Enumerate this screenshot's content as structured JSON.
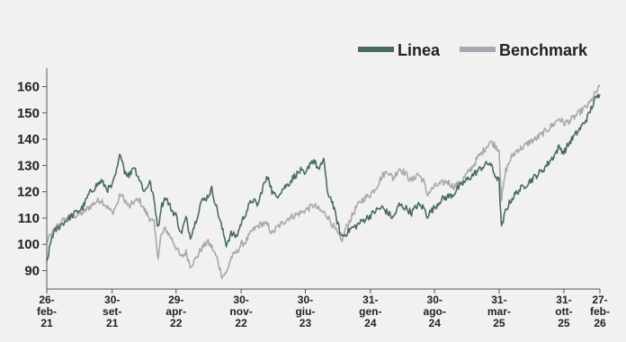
{
  "chart_data": {
    "type": "line",
    "title": "",
    "xlabel": "",
    "ylabel": "",
    "ylim": [
      83,
      167
    ],
    "yticks": [
      90,
      100,
      110,
      120,
      130,
      140,
      150,
      160
    ],
    "grid": false,
    "legend_position": "top-right",
    "x_tick_labels": [
      [
        "26-",
        "feb-",
        "21"
      ],
      [
        "30-",
        "set-",
        "21"
      ],
      [
        "29-",
        "apr-",
        "22"
      ],
      [
        "30-",
        "nov-",
        "22"
      ],
      [
        "30-",
        "giu-",
        "23"
      ],
      [
        "31-",
        "gen-",
        "24"
      ],
      [
        "30-",
        "ago-",
        "24"
      ],
      [
        "31-",
        "mar-",
        "25"
      ],
      [
        "31-",
        "ott-",
        "25"
      ],
      [
        "27-",
        "feb-",
        "26"
      ]
    ],
    "x_tick_dates": [
      "2021-02-26",
      "2021-09-30",
      "2022-04-29",
      "2022-11-30",
      "2023-06-30",
      "2024-01-31",
      "2024-08-30",
      "2025-03-31",
      "2025-10-31",
      "2026-02-27"
    ],
    "series": [
      {
        "name": "Linea",
        "color": "#4a6b62",
        "points": [
          [
            "2021-02-26",
            93
          ],
          [
            "2021-03-15",
            103
          ],
          [
            "2021-04-01",
            106
          ],
          [
            "2021-04-20",
            108
          ],
          [
            "2021-05-10",
            110
          ],
          [
            "2021-06-01",
            112
          ],
          [
            "2021-06-25",
            114
          ],
          [
            "2021-07-15",
            119
          ],
          [
            "2021-08-05",
            122
          ],
          [
            "2021-08-25",
            124
          ],
          [
            "2021-09-15",
            121
          ],
          [
            "2021-09-30",
            122
          ],
          [
            "2021-10-15",
            128
          ],
          [
            "2021-10-28",
            135
          ],
          [
            "2021-11-10",
            128
          ],
          [
            "2021-11-25",
            126
          ],
          [
            "2021-12-10",
            130
          ],
          [
            "2021-12-28",
            125
          ],
          [
            "2022-01-15",
            120
          ],
          [
            "2022-02-01",
            124
          ],
          [
            "2022-02-15",
            117
          ],
          [
            "2022-03-01",
            106
          ],
          [
            "2022-03-10",
            114
          ],
          [
            "2022-03-25",
            118
          ],
          [
            "2022-04-15",
            113
          ],
          [
            "2022-04-29",
            111
          ],
          [
            "2022-05-15",
            104
          ],
          [
            "2022-06-01",
            110
          ],
          [
            "2022-06-15",
            103
          ],
          [
            "2022-07-01",
            108
          ],
          [
            "2022-07-20",
            116
          ],
          [
            "2022-08-10",
            118
          ],
          [
            "2022-08-25",
            121
          ],
          [
            "2022-09-10",
            114
          ],
          [
            "2022-09-28",
            106
          ],
          [
            "2022-10-12",
            100
          ],
          [
            "2022-10-28",
            104
          ],
          [
            "2022-11-15",
            103
          ],
          [
            "2022-11-30",
            108
          ],
          [
            "2022-12-15",
            112
          ],
          [
            "2023-01-05",
            117
          ],
          [
            "2023-01-25",
            115
          ],
          [
            "2023-02-10",
            122
          ],
          [
            "2023-02-28",
            126
          ],
          [
            "2023-03-12",
            120
          ],
          [
            "2023-03-25",
            118
          ],
          [
            "2023-04-15",
            121
          ],
          [
            "2023-05-05",
            123
          ],
          [
            "2023-05-25",
            126
          ],
          [
            "2023-06-15",
            128
          ],
          [
            "2023-06-30",
            126
          ],
          [
            "2023-07-15",
            131
          ],
          [
            "2023-07-28",
            132
          ],
          [
            "2023-08-15",
            128
          ],
          [
            "2023-08-30",
            133
          ],
          [
            "2023-09-10",
            120
          ],
          [
            "2023-09-25",
            117
          ],
          [
            "2023-10-10",
            110
          ],
          [
            "2023-10-27",
            103
          ],
          [
            "2023-11-10",
            104
          ],
          [
            "2023-11-28",
            106
          ],
          [
            "2023-12-15",
            107
          ],
          [
            "2024-01-05",
            109
          ],
          [
            "2024-01-31",
            111
          ],
          [
            "2024-02-20",
            113
          ],
          [
            "2024-03-10",
            114
          ],
          [
            "2024-03-28",
            112
          ],
          [
            "2024-04-15",
            110
          ],
          [
            "2024-05-05",
            115
          ],
          [
            "2024-05-25",
            114
          ],
          [
            "2024-06-15",
            112
          ],
          [
            "2024-07-05",
            115
          ],
          [
            "2024-07-25",
            114
          ],
          [
            "2024-08-05",
            111
          ],
          [
            "2024-08-30",
            114
          ],
          [
            "2024-09-20",
            117
          ],
          [
            "2024-10-10",
            118
          ],
          [
            "2024-10-30",
            119
          ],
          [
            "2024-11-20",
            122
          ],
          [
            "2024-12-10",
            124
          ],
          [
            "2024-12-30",
            126
          ],
          [
            "2025-01-20",
            128
          ],
          [
            "2025-02-10",
            130
          ],
          [
            "2025-02-28",
            131
          ],
          [
            "2025-03-15",
            127
          ],
          [
            "2025-03-31",
            124
          ],
          [
            "2025-04-08",
            106
          ],
          [
            "2025-04-22",
            113
          ],
          [
            "2025-05-10",
            117
          ],
          [
            "2025-05-30",
            120
          ],
          [
            "2025-06-20",
            122
          ],
          [
            "2025-07-10",
            124
          ],
          [
            "2025-07-30",
            126
          ],
          [
            "2025-08-20",
            128
          ],
          [
            "2025-09-10",
            131
          ],
          [
            "2025-09-30",
            134
          ],
          [
            "2025-10-15",
            137
          ],
          [
            "2025-10-31",
            135
          ],
          [
            "2025-11-20",
            139
          ],
          [
            "2025-12-10",
            142
          ],
          [
            "2025-12-30",
            145
          ],
          [
            "2026-01-20",
            149
          ],
          [
            "2026-02-10",
            155
          ],
          [
            "2026-02-27",
            157
          ]
        ]
      },
      {
        "name": "Benchmark",
        "color": "#a9a7b0",
        "points": [
          [
            "2021-02-26",
            101
          ],
          [
            "2021-03-15",
            104
          ],
          [
            "2021-04-01",
            107
          ],
          [
            "2021-04-20",
            109
          ],
          [
            "2021-05-10",
            110
          ],
          [
            "2021-06-01",
            111
          ],
          [
            "2021-06-25",
            112
          ],
          [
            "2021-07-15",
            114
          ],
          [
            "2021-08-05",
            116
          ],
          [
            "2021-08-25",
            117
          ],
          [
            "2021-09-15",
            114
          ],
          [
            "2021-09-30",
            112
          ],
          [
            "2021-10-15",
            115
          ],
          [
            "2021-10-28",
            119
          ],
          [
            "2021-11-10",
            117
          ],
          [
            "2021-11-25",
            114
          ],
          [
            "2021-12-10",
            116
          ],
          [
            "2021-12-28",
            117
          ],
          [
            "2022-01-15",
            113
          ],
          [
            "2022-02-01",
            110
          ],
          [
            "2022-02-15",
            108
          ],
          [
            "2022-03-01",
            95
          ],
          [
            "2022-03-10",
            103
          ],
          [
            "2022-03-25",
            106
          ],
          [
            "2022-04-15",
            102
          ],
          [
            "2022-04-29",
            99
          ],
          [
            "2022-05-15",
            95
          ],
          [
            "2022-06-01",
            97
          ],
          [
            "2022-06-15",
            92
          ],
          [
            "2022-07-01",
            94
          ],
          [
            "2022-07-20",
            98
          ],
          [
            "2022-08-10",
            101
          ],
          [
            "2022-08-25",
            99
          ],
          [
            "2022-09-10",
            95
          ],
          [
            "2022-09-28",
            88
          ],
          [
            "2022-10-12",
            89
          ],
          [
            "2022-10-28",
            95
          ],
          [
            "2022-11-15",
            97
          ],
          [
            "2022-11-30",
            100
          ],
          [
            "2022-12-15",
            101
          ],
          [
            "2023-01-05",
            105
          ],
          [
            "2023-01-25",
            107
          ],
          [
            "2023-02-10",
            108
          ],
          [
            "2023-02-28",
            107
          ],
          [
            "2023-03-12",
            104
          ],
          [
            "2023-03-25",
            106
          ],
          [
            "2023-04-15",
            108
          ],
          [
            "2023-05-05",
            110
          ],
          [
            "2023-05-25",
            111
          ],
          [
            "2023-06-15",
            112
          ],
          [
            "2023-06-30",
            113
          ],
          [
            "2023-07-15",
            114
          ],
          [
            "2023-07-28",
            115
          ],
          [
            "2023-08-15",
            113
          ],
          [
            "2023-08-30",
            112
          ],
          [
            "2023-09-10",
            111
          ],
          [
            "2023-09-25",
            108
          ],
          [
            "2023-10-10",
            105
          ],
          [
            "2023-10-27",
            101
          ],
          [
            "2023-11-10",
            106
          ],
          [
            "2023-11-28",
            110
          ],
          [
            "2023-12-15",
            114
          ],
          [
            "2024-01-05",
            117
          ],
          [
            "2024-01-31",
            119
          ],
          [
            "2024-02-20",
            122
          ],
          [
            "2024-03-10",
            126
          ],
          [
            "2024-03-28",
            128
          ],
          [
            "2024-04-15",
            125
          ],
          [
            "2024-05-05",
            129
          ],
          [
            "2024-05-25",
            127
          ],
          [
            "2024-06-15",
            124
          ],
          [
            "2024-07-05",
            127
          ],
          [
            "2024-07-25",
            124
          ],
          [
            "2024-08-05",
            119
          ],
          [
            "2024-08-30",
            122
          ],
          [
            "2024-09-20",
            123
          ],
          [
            "2024-10-10",
            124
          ],
          [
            "2024-10-30",
            122
          ],
          [
            "2024-11-20",
            123
          ],
          [
            "2024-12-10",
            126
          ],
          [
            "2024-12-30",
            129
          ],
          [
            "2025-01-20",
            133
          ],
          [
            "2025-02-10",
            136
          ],
          [
            "2025-02-28",
            139
          ],
          [
            "2025-03-15",
            138
          ],
          [
            "2025-03-31",
            136
          ],
          [
            "2025-04-08",
            117
          ],
          [
            "2025-04-22",
            128
          ],
          [
            "2025-05-10",
            133
          ],
          [
            "2025-05-30",
            136
          ],
          [
            "2025-06-20",
            137
          ],
          [
            "2025-07-10",
            139
          ],
          [
            "2025-07-30",
            140
          ],
          [
            "2025-08-20",
            142
          ],
          [
            "2025-09-10",
            144
          ],
          [
            "2025-09-30",
            146
          ],
          [
            "2025-10-15",
            148
          ],
          [
            "2025-10-31",
            146
          ],
          [
            "2025-11-20",
            147
          ],
          [
            "2025-12-10",
            149
          ],
          [
            "2025-12-30",
            151
          ],
          [
            "2026-01-20",
            153
          ],
          [
            "2026-02-10",
            157
          ],
          [
            "2026-02-27",
            160
          ]
        ]
      }
    ]
  }
}
